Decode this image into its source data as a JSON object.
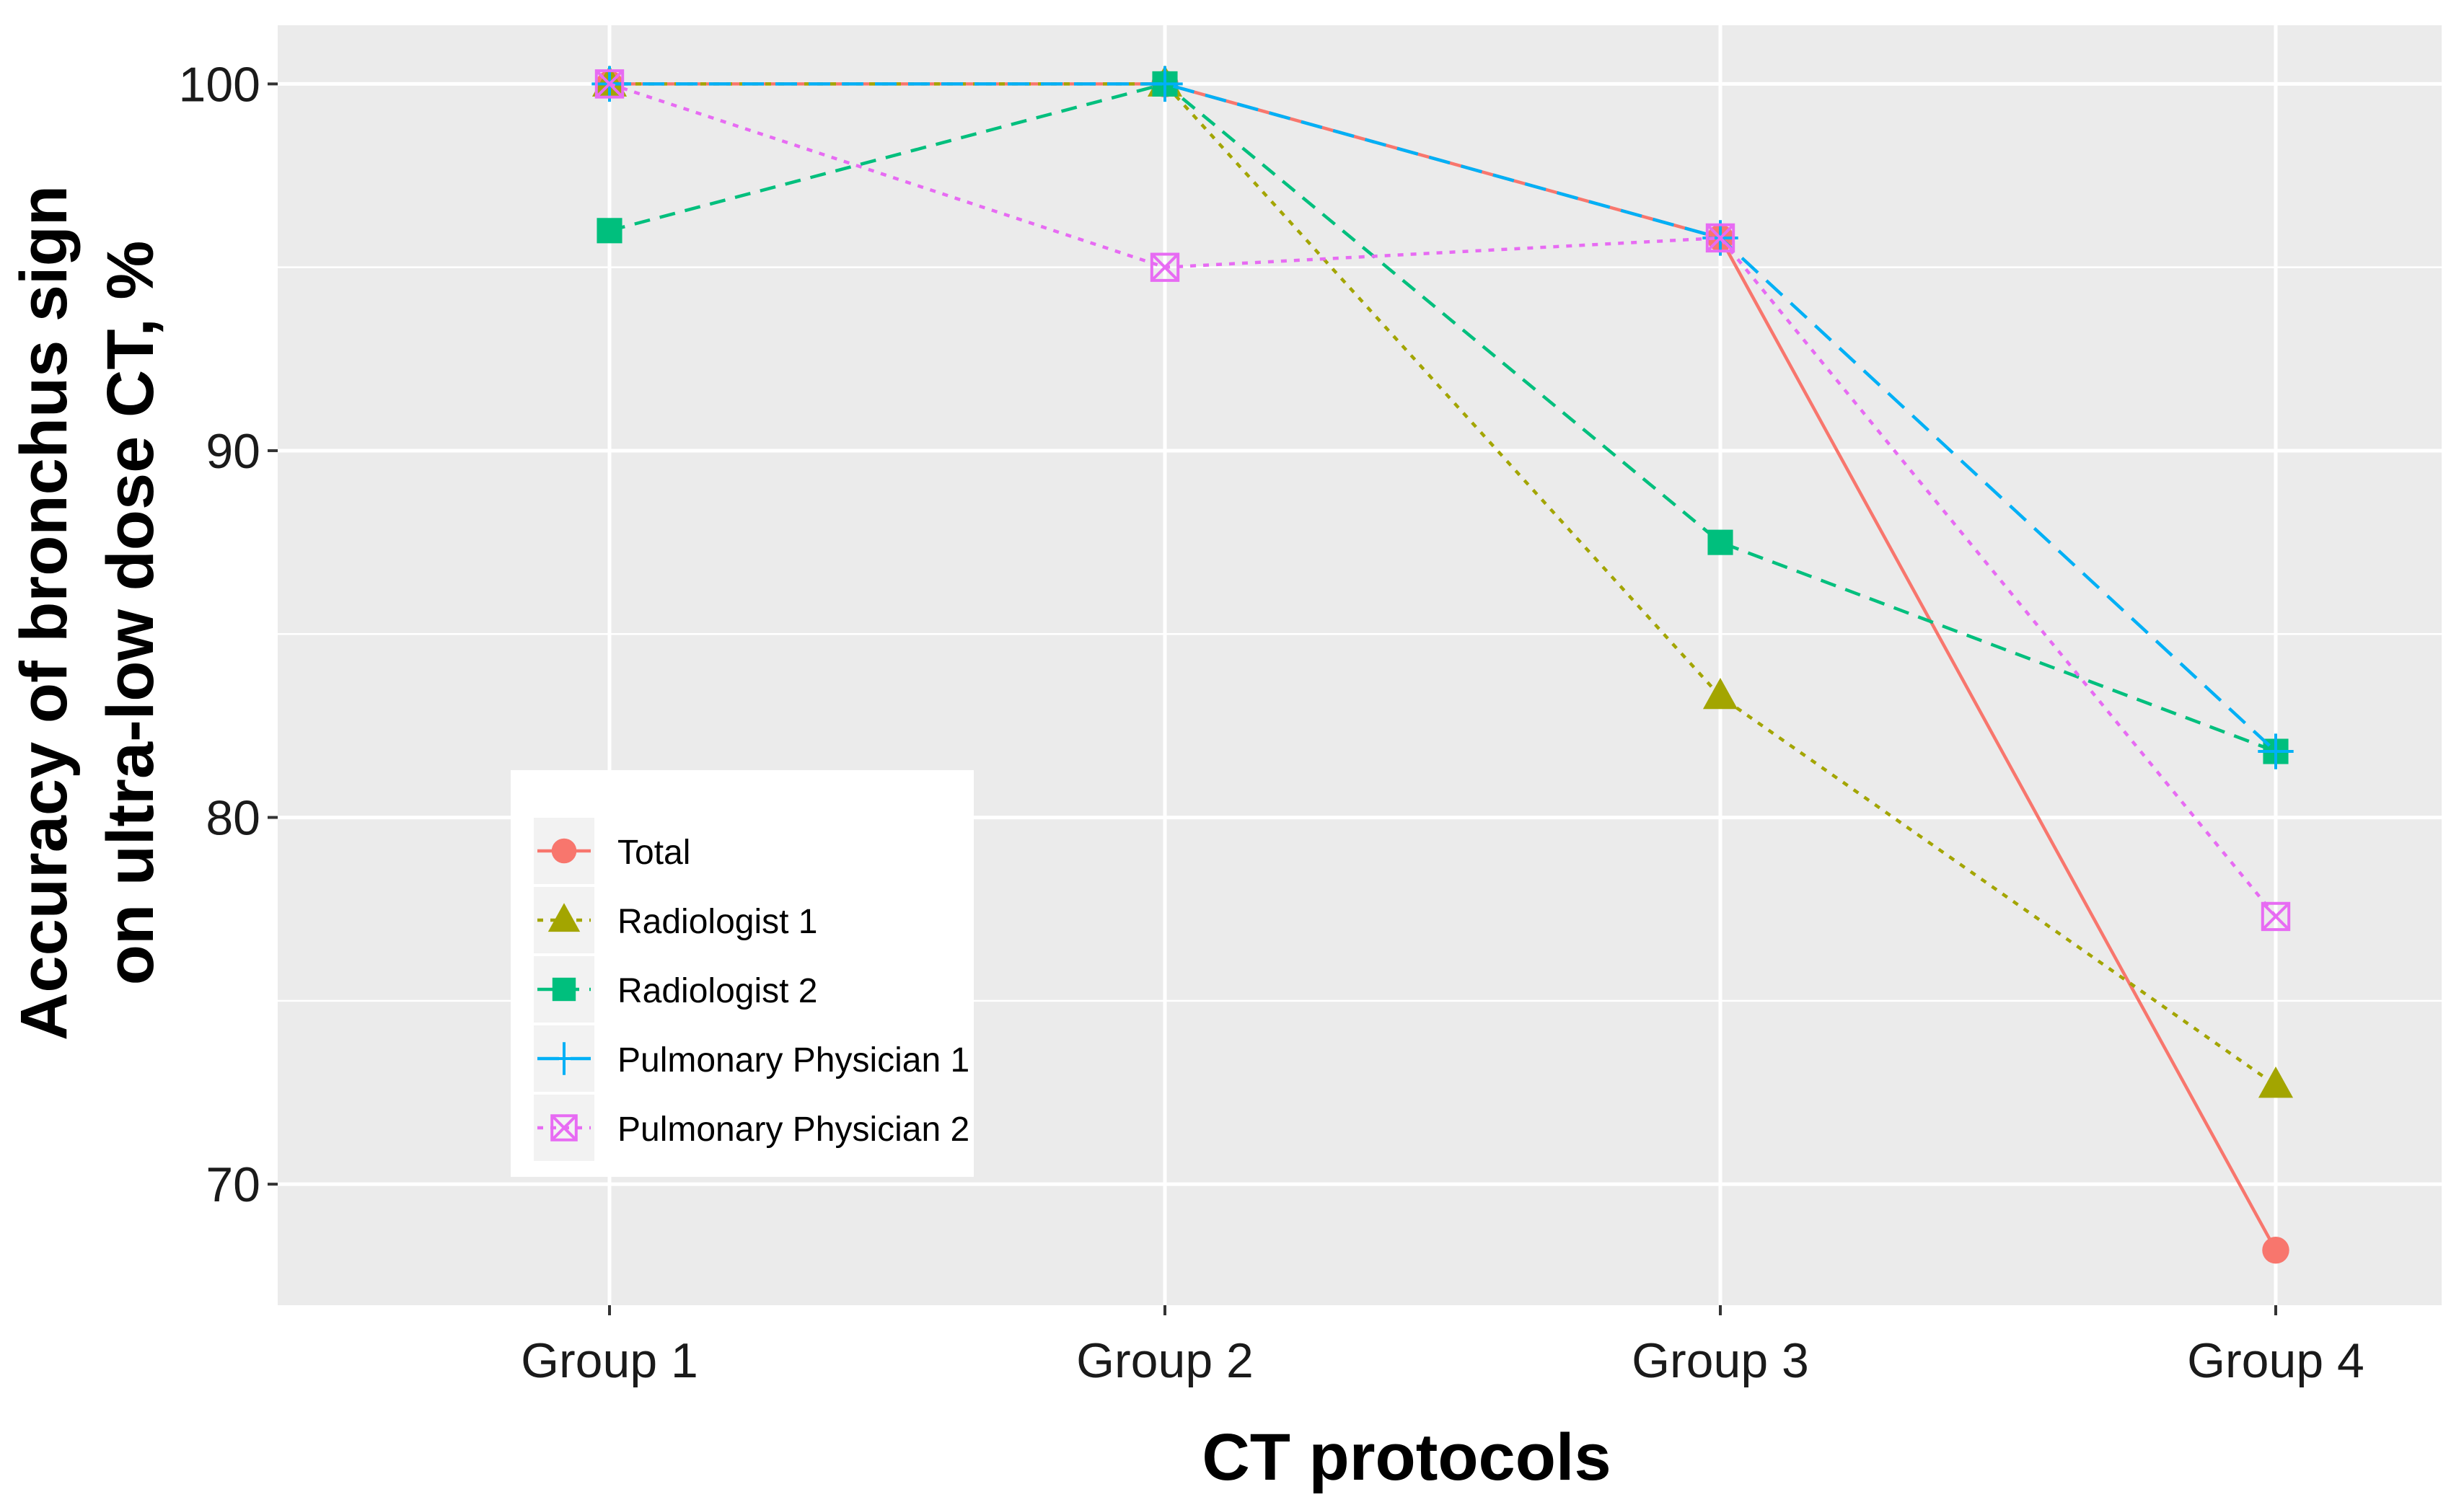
{
  "chart_data": {
    "type": "line",
    "title": "",
    "xlabel": "CT protocols",
    "ylabel_line1": "Accuracy of bronchus sign",
    "ylabel_line2": "on ultra-low dose CT,  %",
    "categories": [
      "Group 1",
      "Group 2",
      "Group 3",
      "Group 4"
    ],
    "ylim": [
      66.7,
      101.6
    ],
    "y_ticks": [
      70,
      80,
      90,
      100
    ],
    "y_tick_labels": [
      "70",
      "80",
      "90",
      "100"
    ],
    "grid": true,
    "legend_position": "bottom-left",
    "series": [
      {
        "name": "Total",
        "values": [
          100,
          100,
          95.8,
          68.2
        ],
        "color": "#F8766D",
        "marker": "circle",
        "dash": "solid"
      },
      {
        "name": "Radiologist 1",
        "values": [
          100,
          100,
          83.3,
          72.7
        ],
        "color": "#A3A500",
        "marker": "triangle",
        "dash": "dotted"
      },
      {
        "name": "Radiologist 2",
        "values": [
          96,
          100,
          87.5,
          81.8
        ],
        "color": "#00BF7D",
        "marker": "square",
        "dash": "dashed"
      },
      {
        "name": "Pulmonary Physician 1",
        "values": [
          100,
          100,
          95.8,
          81.8
        ],
        "color": "#00B0F6",
        "marker": "plus",
        "dash": "longdash"
      },
      {
        "name": "Pulmonary Physician 2",
        "values": [
          100,
          95,
          95.8,
          77.3
        ],
        "color": "#E76BF3",
        "marker": "boxcross",
        "dash": "dotted"
      }
    ]
  }
}
